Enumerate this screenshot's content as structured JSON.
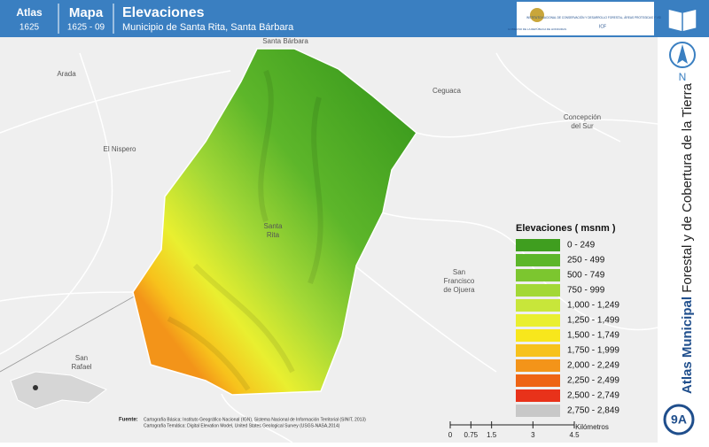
{
  "header": {
    "atlas_label": "Atlas",
    "atlas_code": "1625",
    "map_label": "Mapa",
    "map_code": "1625 - 09",
    "title": "Elevaciones",
    "subtitle": "Municipio de Santa Rita, Santa Bárbara",
    "logo_left": "GOBIERNO DE LA REPÚBLICA DE HONDURAS",
    "logo_right": "INSTITUTO NACIONAL DE CONSERVACIÓN Y DESARROLLO FORESTAL, ÁREAS PROTEGIDAS Y VIDA SILVESTRE",
    "logo_right_short": "ICF"
  },
  "side": {
    "north": "N",
    "atlas_title_bold": "Atlas Municipal",
    "atlas_title_rest": "Forestal y de Cobertura de la Tierra",
    "page": "9A"
  },
  "places": [
    {
      "lines": [
        "Santa Bárbara"
      ]
    },
    {
      "lines": [
        "Arada"
      ]
    },
    {
      "lines": [
        "Ceguaca"
      ]
    },
    {
      "lines": [
        "Concepción",
        "del Sur"
      ]
    },
    {
      "lines": [
        "El Nispero"
      ]
    },
    {
      "lines": [
        "Santa",
        "Rita"
      ]
    },
    {
      "lines": [
        "San",
        "Francisco",
        "de Ojuera"
      ]
    },
    {
      "lines": [
        "San",
        "Rafael"
      ]
    }
  ],
  "legend": {
    "title": "Elevaciones ( msnm )",
    "items": [
      {
        "label": "0 - 249",
        "color": "#3f9e1f"
      },
      {
        "label": "250 - 499",
        "color": "#5db62a"
      },
      {
        "label": "500 - 749",
        "color": "#7cc62f"
      },
      {
        "label": "750 - 999",
        "color": "#a3d836"
      },
      {
        "label": "1,000 - 1,249",
        "color": "#c8e63a"
      },
      {
        "label": "1,250 - 1,499",
        "color": "#e9ef30"
      },
      {
        "label": "1,500 - 1,749",
        "color": "#f8e71c"
      },
      {
        "label": "1,750 - 1,999",
        "color": "#f7c21c"
      },
      {
        "label": "2,000 - 2,249",
        "color": "#f39419"
      },
      {
        "label": "2,250 - 2,499",
        "color": "#ee6414"
      },
      {
        "label": "2,500 - 2,749",
        "color": "#e8321a"
      },
      {
        "label": "2,750 - 2,849",
        "color": "#c8c8c8"
      }
    ]
  },
  "source": {
    "label": "Fuente:",
    "lines": [
      "Cartografía Básica: Instituto Geográfico Nacional (IGN), Sistema Nacional de Información Territorial (SINIT, 2013)",
      "Cartografía Temática: Digital Elevation Model, United States Geological Survey (USGS-NASA,2014)"
    ]
  },
  "scale": {
    "ticks": [
      0,
      0.75,
      1.5,
      3,
      4.5
    ],
    "unit": "Kilómetros"
  }
}
